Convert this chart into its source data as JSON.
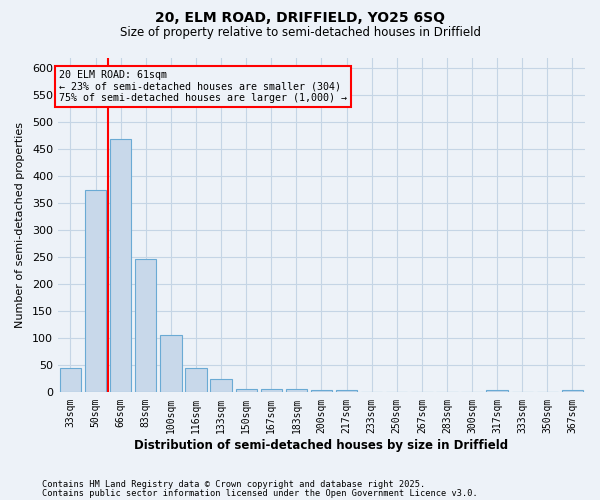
{
  "title1": "20, ELM ROAD, DRIFFIELD, YO25 6SQ",
  "title2": "Size of property relative to semi-detached houses in Driffield",
  "xlabel": "Distribution of semi-detached houses by size in Driffield",
  "ylabel": "Number of semi-detached properties",
  "categories": [
    "33sqm",
    "50sqm",
    "66sqm",
    "83sqm",
    "100sqm",
    "116sqm",
    "133sqm",
    "150sqm",
    "167sqm",
    "183sqm",
    "200sqm",
    "217sqm",
    "233sqm",
    "250sqm",
    "267sqm",
    "283sqm",
    "300sqm",
    "317sqm",
    "333sqm",
    "350sqm",
    "367sqm"
  ],
  "values": [
    45,
    375,
    470,
    247,
    107,
    45,
    25,
    7,
    7,
    6,
    5,
    5,
    0,
    1,
    0,
    0,
    0,
    4,
    0,
    0,
    4
  ],
  "bar_color": "#c8d8ea",
  "bar_edge_color": "#6aaad4",
  "grid_color": "#c5d5e5",
  "background_color": "#edf2f8",
  "property_line_x": 1.5,
  "property_sqm": 61,
  "pct_smaller": 23,
  "pct_larger": 75,
  "count_smaller": 304,
  "count_larger": "1,000",
  "ann_line1": "20 ELM ROAD: 61sqm",
  "ann_line2": "← 23% of semi-detached houses are smaller (304)",
  "ann_line3": "75% of semi-detached houses are larger (1,000) →",
  "footer1": "Contains HM Land Registry data © Crown copyright and database right 2025.",
  "footer2": "Contains public sector information licensed under the Open Government Licence v3.0.",
  "ylim_max": 620,
  "yticks": [
    0,
    50,
    100,
    150,
    200,
    250,
    300,
    350,
    400,
    450,
    500,
    550,
    600
  ]
}
